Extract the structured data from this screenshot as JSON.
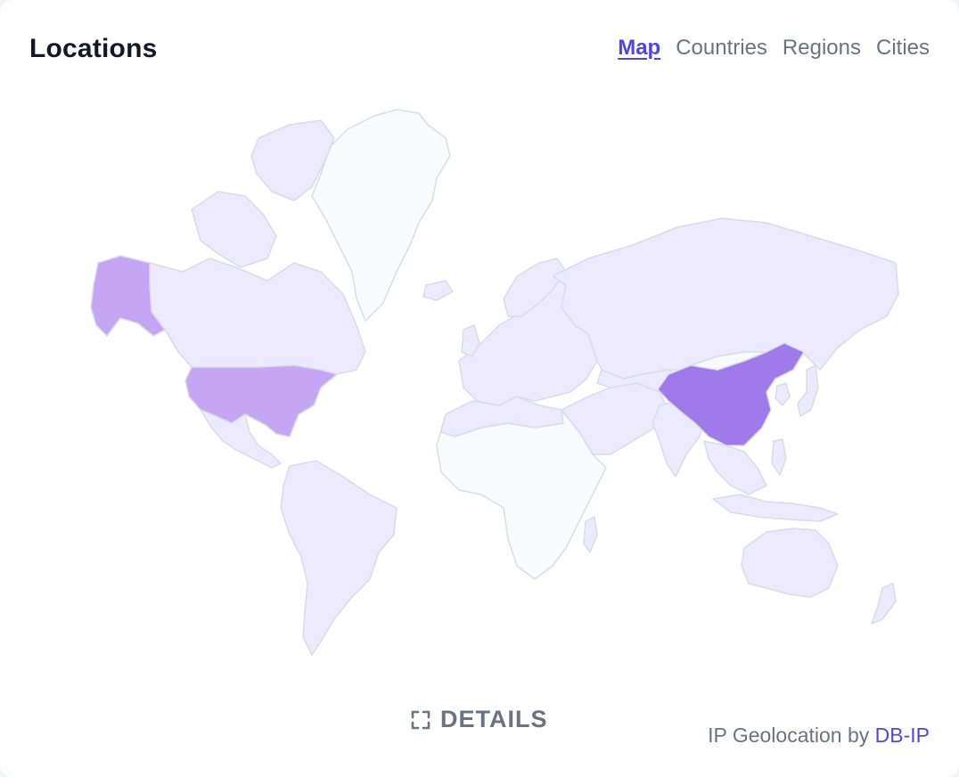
{
  "header": {
    "title": "Locations",
    "tabs": [
      {
        "label": "Map",
        "active": true
      },
      {
        "label": "Countries",
        "active": false
      },
      {
        "label": "Regions",
        "active": false
      },
      {
        "label": "Cities",
        "active": false
      }
    ]
  },
  "map": {
    "highlighted_countries": [
      {
        "country": "China",
        "intensity": "high",
        "color": "#9f7aea"
      },
      {
        "country": "United States",
        "intensity": "medium",
        "color": "#c4a6f5"
      }
    ],
    "base_color": "#ede9fe",
    "no_data_color": "#f8fafc",
    "border_color": "#d9dde6"
  },
  "footer": {
    "details_label": "DETAILS",
    "details_icon": "expand-icon",
    "credit_prefix": "IP Geolocation by",
    "credit_link": "DB-IP"
  },
  "colors": {
    "accent": "#4f46e5",
    "muted_text": "#6b7280",
    "title_text": "#111827"
  }
}
